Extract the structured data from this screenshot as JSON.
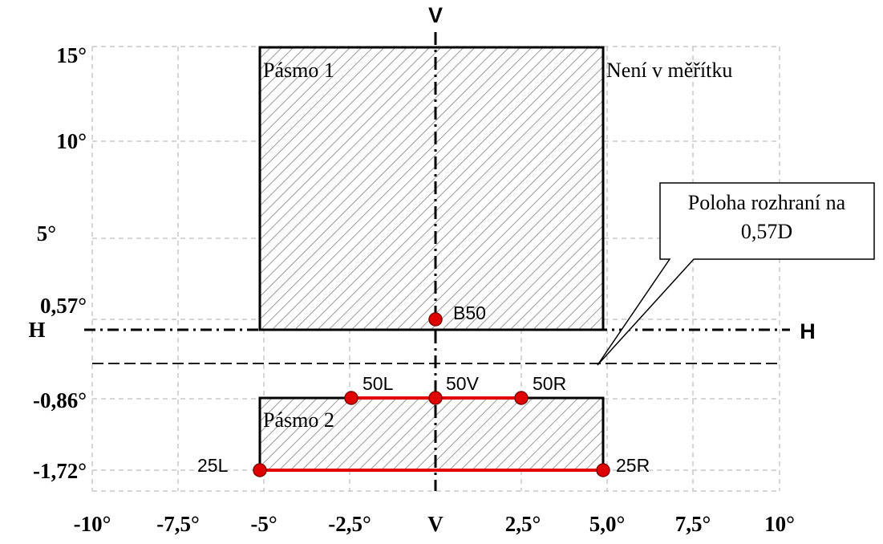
{
  "axis": {
    "v_top": "V",
    "h_left": "H",
    "h_right": "H",
    "y_labels": [
      "15°",
      "10°",
      "5°",
      "0,57°",
      "-0,86°",
      "-1,72°"
    ],
    "x_labels": [
      "-10°",
      "-7,5°",
      "-5°",
      "-2,5°",
      "V",
      "2,5°",
      "5,0°",
      "7,5°",
      "10°"
    ]
  },
  "zones": {
    "zone1": "Pásmo 1",
    "zone2": "Pásmo 2"
  },
  "note": "Není v měřítku",
  "callout": {
    "line1": "Poloha rozhraní na",
    "line2": "0,57D"
  },
  "points": [
    "B50",
    "50L",
    "50V",
    "50R",
    "25L",
    "25R"
  ]
}
